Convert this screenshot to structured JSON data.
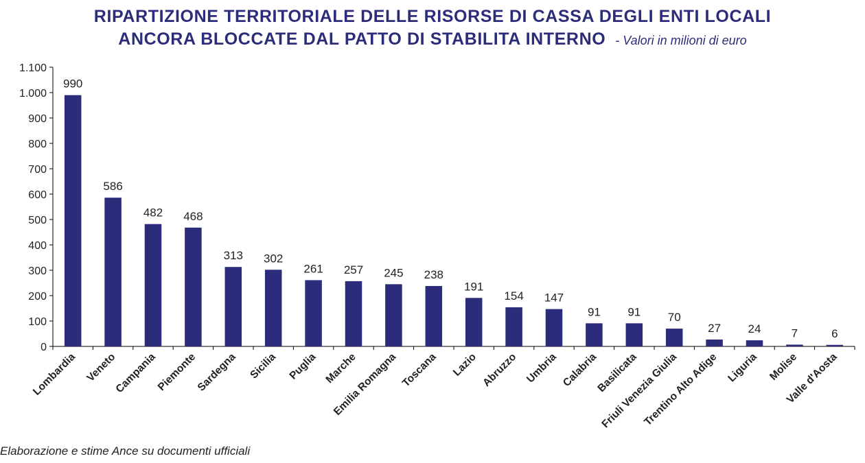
{
  "chart_data": {
    "type": "bar",
    "title": "RIPARTIZIONE TERRITORIALE DELLE RISORSE DI CASSA DEGLI ENTI LOCALI",
    "title_line2": "ANCORA BLOCCATE DAL PATTO DI STABILITA INTERNO",
    "subtitle": "- Valori in milioni di euro",
    "xlabel": "",
    "ylabel": "",
    "ylim": [
      0,
      1100
    ],
    "yticks": [
      0,
      100,
      200,
      300,
      400,
      500,
      600,
      700,
      800,
      900,
      1000,
      1100
    ],
    "ytick_labels": [
      "0",
      "100",
      "200",
      "300",
      "400",
      "500",
      "600",
      "700",
      "800",
      "900",
      "1.000",
      "1.100"
    ],
    "grid": false,
    "legend": "none",
    "categories": [
      "Lombardia",
      "Veneto",
      "Campania",
      "Piemonte",
      "Sardegna",
      "Sicilia",
      "Puglia",
      "Marche",
      "Emilia Romagna",
      "Toscana",
      "Lazio",
      "Abruzzo",
      "Umbria",
      "Calabria",
      "Basilicata",
      "Friuli Venezia Giulia",
      "Trentino Alto Adige",
      "Liguria",
      "Molise",
      "Valle d'Aosta"
    ],
    "values": [
      990,
      586,
      482,
      468,
      313,
      302,
      261,
      257,
      245,
      238,
      191,
      154,
      147,
      91,
      91,
      70,
      27,
      24,
      7,
      6
    ],
    "bar_color": "#2b2d7a",
    "source": "Elaborazione e stime Ance su documenti ufficiali"
  },
  "colors": {
    "title": "#2b2d7a",
    "bar": "#2b2d7a",
    "axis": "#000000",
    "text": "#222222"
  }
}
